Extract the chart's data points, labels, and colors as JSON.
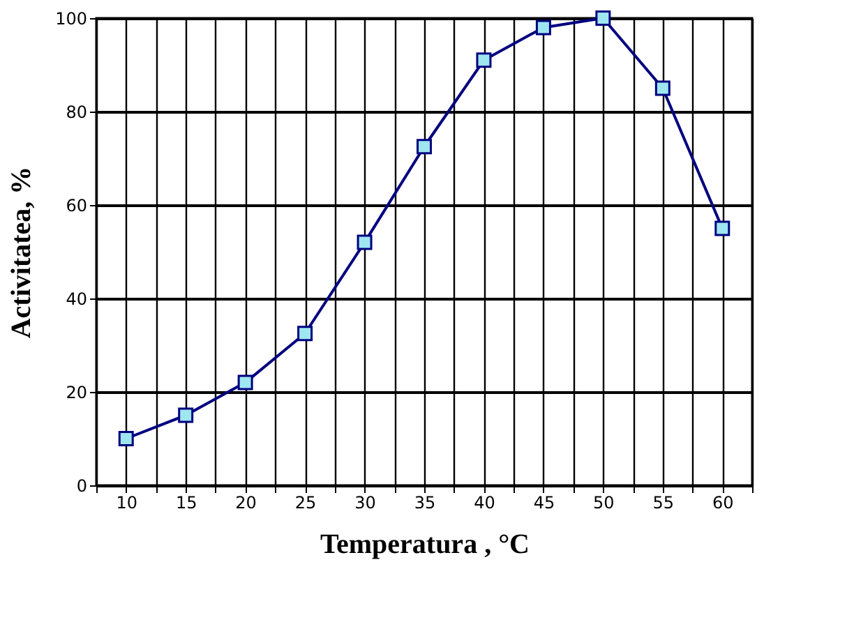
{
  "chart_data": {
    "type": "line",
    "xlabel": "Temperatura , °C",
    "ylabel": "Activitatea, %",
    "x": [
      10,
      15,
      20,
      25,
      30,
      35,
      40,
      45,
      50,
      55,
      60
    ],
    "series": [
      {
        "color": "#000080",
        "values": [
          10,
          15,
          22,
          32.5,
          52,
          72.5,
          91,
          98,
          100,
          85,
          55
        ]
      }
    ],
    "xlim": [
      7.5,
      62.5
    ],
    "xticks": [
      {
        "value": 7.5,
        "label": null
      },
      10,
      {
        "value": 12.5,
        "label": null
      },
      15,
      {
        "value": 17.5,
        "label": null
      },
      20,
      {
        "value": 22.5,
        "label": null
      },
      25,
      {
        "value": 27.5,
        "label": null
      },
      30,
      {
        "value": 32.5,
        "label": null
      },
      35,
      {
        "value": 37.5,
        "label": null
      },
      40,
      {
        "value": 42.5,
        "label": null
      },
      45,
      {
        "value": 47.5,
        "label": null
      },
      50,
      {
        "value": 52.5,
        "label": null
      },
      55,
      {
        "value": 57.5,
        "label": null
      },
      60,
      {
        "value": 62.5,
        "label": null
      }
    ],
    "ylim": [
      0,
      100
    ],
    "yticks": [
      0,
      20,
      40,
      60,
      80,
      100
    ],
    "grid": true,
    "marker": "square",
    "line_style": "solid"
  }
}
